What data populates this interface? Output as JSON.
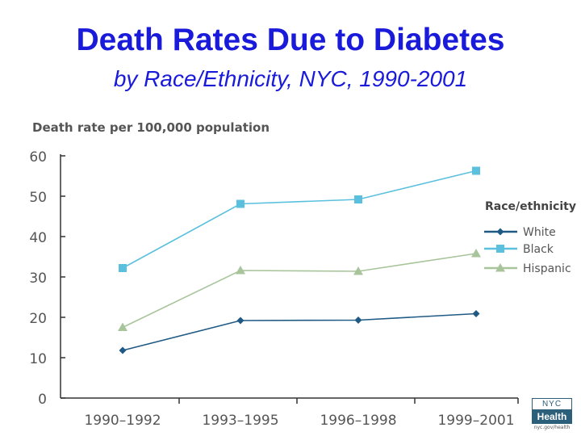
{
  "slide": {
    "title": "Death Rates Due to Diabetes",
    "subtitle": "by Race/Ethnicity, NYC, 1990-2001"
  },
  "logo": {
    "top": "NYC",
    "bottom": "Health",
    "url": "nyc.gov/health"
  },
  "chart_data": {
    "type": "line",
    "title": "",
    "ylabel": "Death rate per 100,000 population",
    "xlabel": "",
    "categories": [
      "1990–1992",
      "1993–1995",
      "1996–1998",
      "1999–2001"
    ],
    "ylim": [
      0,
      60
    ],
    "yticks": [
      0,
      10,
      20,
      30,
      40,
      50,
      60
    ],
    "legend_title": "Race/ethnicity",
    "legend_position": "right",
    "grid": false,
    "series": [
      {
        "name": "White",
        "values": [
          11.8,
          19.2,
          19.3,
          20.9
        ],
        "color": "#1f5a85",
        "marker": "diamond"
      },
      {
        "name": "Black",
        "values": [
          32.2,
          48.1,
          49.2,
          56.3
        ],
        "color": "#5bc0de",
        "marker": "square"
      },
      {
        "name": "Hispanic",
        "values": [
          17.5,
          31.6,
          31.4,
          35.8
        ],
        "color": "#a8c49a",
        "marker": "triangle"
      }
    ]
  }
}
